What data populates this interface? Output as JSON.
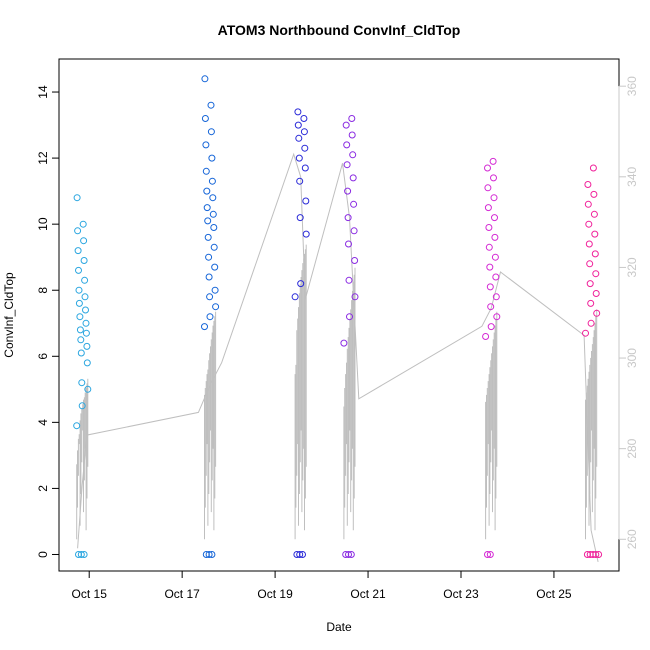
{
  "chart_data": {
    "type": "scatter",
    "title": "ATOM3 Northbound ConvInf_CldTop",
    "xlabel": "Date",
    "ylabel": "ConvInf_CldTop",
    "x_ticks": [
      "Oct 15",
      "Oct 17",
      "Oct 19",
      "Oct 21",
      "Oct 23",
      "Oct 25"
    ],
    "y_ticks": [
      0,
      2,
      4,
      6,
      8,
      10,
      12,
      14
    ],
    "y2_ticks": [
      260,
      280,
      300,
      320,
      340,
      360
    ],
    "xlim_days": [
      14.35,
      26.4
    ],
    "ylim": [
      -0.5,
      15
    ],
    "y2lim": [
      253,
      366
    ],
    "colors": {
      "axis": "#000000",
      "secondary_axis": "#c8c8c8",
      "line": "#bfbfbf"
    },
    "clusters": [
      {
        "day": 14.85,
        "color": "#2aa6e0",
        "values": [
          3.9,
          4.5,
          5.0,
          5.2,
          5.8,
          6.1,
          6.3,
          6.5,
          6.7,
          6.8,
          7.0,
          7.2,
          7.4,
          7.6,
          7.8,
          8.0,
          8.3,
          8.6,
          8.9,
          9.2,
          9.5,
          9.8,
          10.0,
          10.8,
          0,
          0,
          0
        ]
      },
      {
        "day": 17.6,
        "color": "#1565d8",
        "values": [
          6.9,
          7.2,
          7.5,
          7.8,
          8.0,
          8.4,
          8.7,
          9.0,
          9.3,
          9.6,
          9.9,
          10.1,
          10.3,
          10.5,
          10.8,
          11.0,
          11.3,
          11.6,
          12.0,
          12.4,
          12.8,
          13.2,
          13.6,
          14.4,
          0,
          0,
          0
        ]
      },
      {
        "day": 19.55,
        "color": "#2a2ad8",
        "values": [
          7.8,
          8.2,
          9.7,
          10.2,
          10.7,
          11.3,
          11.7,
          12.0,
          12.3,
          12.6,
          12.8,
          13.0,
          13.2,
          13.4,
          0,
          0,
          0
        ]
      },
      {
        "day": 20.6,
        "color": "#8a2be2",
        "values": [
          6.4,
          7.2,
          7.8,
          8.3,
          8.9,
          9.4,
          9.8,
          10.2,
          10.6,
          11.0,
          11.4,
          11.8,
          12.1,
          12.4,
          12.7,
          13.0,
          13.2,
          0,
          0,
          0
        ]
      },
      {
        "day": 23.65,
        "color": "#d42ad4",
        "values": [
          6.6,
          6.9,
          7.2,
          7.5,
          7.8,
          8.1,
          8.4,
          8.7,
          9.0,
          9.3,
          9.6,
          9.9,
          10.2,
          10.5,
          10.8,
          11.1,
          11.4,
          11.7,
          11.9,
          0,
          0
        ]
      },
      {
        "day": 25.8,
        "color": "#f0219a",
        "values": [
          6.7,
          7.0,
          7.3,
          7.6,
          7.9,
          8.2,
          8.5,
          8.8,
          9.1,
          9.4,
          9.7,
          10.0,
          10.3,
          10.6,
          10.9,
          11.2,
          11.7,
          0,
          0,
          0,
          0,
          0
        ]
      }
    ],
    "line": {
      "x": [
        14.75,
        14.85,
        14.95,
        17.35,
        17.6,
        17.85,
        19.4,
        19.55,
        19.65,
        20.45,
        20.6,
        20.8,
        23.45,
        23.65,
        23.85,
        25.65,
        25.8,
        25.95
      ],
      "y": [
        258,
        272,
        283,
        288,
        294,
        299,
        345,
        340,
        313,
        343,
        331,
        291,
        307,
        311,
        319,
        305,
        262,
        255
      ]
    }
  }
}
